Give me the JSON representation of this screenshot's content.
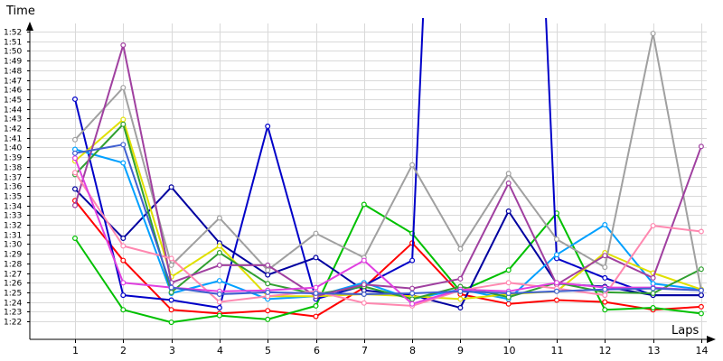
{
  "chart_data": {
    "type": "line",
    "ylabel": "Time",
    "xlabel": "Laps",
    "x": [
      1,
      2,
      3,
      4,
      5,
      6,
      7,
      8,
      9,
      10,
      11,
      12,
      13,
      14
    ],
    "y_ticks": [
      "1:22",
      "1:23",
      "1:24",
      "1:25",
      "1:26",
      "1:27",
      "1:28",
      "1:29",
      "1:30",
      "1:31",
      "1:32",
      "1:33",
      "1:34",
      "1:35",
      "1:36",
      "1:37",
      "1:38",
      "1:39",
      "1:40",
      "1:41",
      "1:42",
      "1:43",
      "1:44",
      "1:45",
      "1:46",
      "1:47",
      "1:48",
      "1:49",
      "1:50",
      "1:51",
      "1:52"
    ],
    "ylim_seconds": [
      81,
      117
    ],
    "grid": true,
    "legend": "none",
    "series": [
      {
        "color": "#ff0000",
        "values": [
          94.5,
          88.3,
          83.2,
          82.8,
          83.1,
          82.5,
          85.5,
          90.1,
          84.8,
          83.8,
          84.2,
          84.0,
          83.2,
          83.5
        ]
      },
      {
        "color": "#00c000",
        "values": [
          90.6,
          83.2,
          81.9,
          82.6,
          82.2,
          83.6,
          94.1,
          91.1,
          85.1,
          87.3,
          93.2,
          83.2,
          83.4,
          82.8
        ]
      },
      {
        "color": "#0000c8",
        "values": [
          105.0,
          84.7,
          84.2,
          83.4,
          102.2,
          84.3,
          85.7,
          88.3,
          200.0,
          200.0,
          88.5,
          86.5,
          84.7,
          84.7
        ]
      },
      {
        "color": "#0000a0",
        "values": [
          95.7,
          90.6,
          95.9,
          90.1,
          86.8,
          88.6,
          85.2,
          84.7,
          83.4,
          93.4,
          85.9,
          85.6,
          84.7,
          84.7
        ]
      },
      {
        "color": "#00a0ff",
        "values": [
          99.8,
          98.4,
          84.9,
          86.2,
          84.3,
          84.6,
          86.0,
          84.3,
          85.3,
          84.3,
          88.9,
          92.0,
          85.9,
          85.3
        ]
      },
      {
        "color": "#e0e000",
        "values": [
          98.6,
          102.9,
          86.6,
          89.8,
          84.6,
          84.6,
          84.8,
          84.6,
          84.3,
          84.8,
          85.1,
          89.1,
          87.0,
          85.3
        ]
      },
      {
        "color": "#30a030",
        "values": [
          97.2,
          102.4,
          85.0,
          89.1,
          85.9,
          84.8,
          85.6,
          84.3,
          85.6,
          84.5,
          86.0,
          85.0,
          84.9,
          87.4
        ]
      },
      {
        "color": "#a0a0a0",
        "values": [
          100.8,
          106.2,
          87.8,
          92.7,
          87.3,
          91.1,
          88.6,
          98.2,
          89.5,
          97.3,
          90.5,
          87.6,
          111.8,
          85.2
        ]
      },
      {
        "color": "#a040a0",
        "values": [
          94.0,
          110.6,
          86.0,
          87.8,
          87.8,
          84.6,
          85.8,
          85.4,
          86.4,
          96.3,
          85.8,
          88.8,
          86.5,
          100.1
        ]
      },
      {
        "color": "#ff88b0",
        "values": [
          97.4,
          89.8,
          88.5,
          84.0,
          84.6,
          85.1,
          83.9,
          83.6,
          85.2,
          86.0,
          85.4,
          84.7,
          91.9,
          91.3
        ]
      },
      {
        "color": "#e040e0",
        "values": [
          98.9,
          86.0,
          85.5,
          85.1,
          85.2,
          85.5,
          88.3,
          83.8,
          85.3,
          85.1,
          86.0,
          85.5,
          85.5,
          85.2
        ]
      },
      {
        "color": "#4060d0",
        "values": [
          99.4,
          100.3,
          85.5,
          84.8,
          85.0,
          84.9,
          84.8,
          84.9,
          85.1,
          84.9,
          85.1,
          85.3,
          85.4,
          85.2
        ]
      }
    ]
  }
}
